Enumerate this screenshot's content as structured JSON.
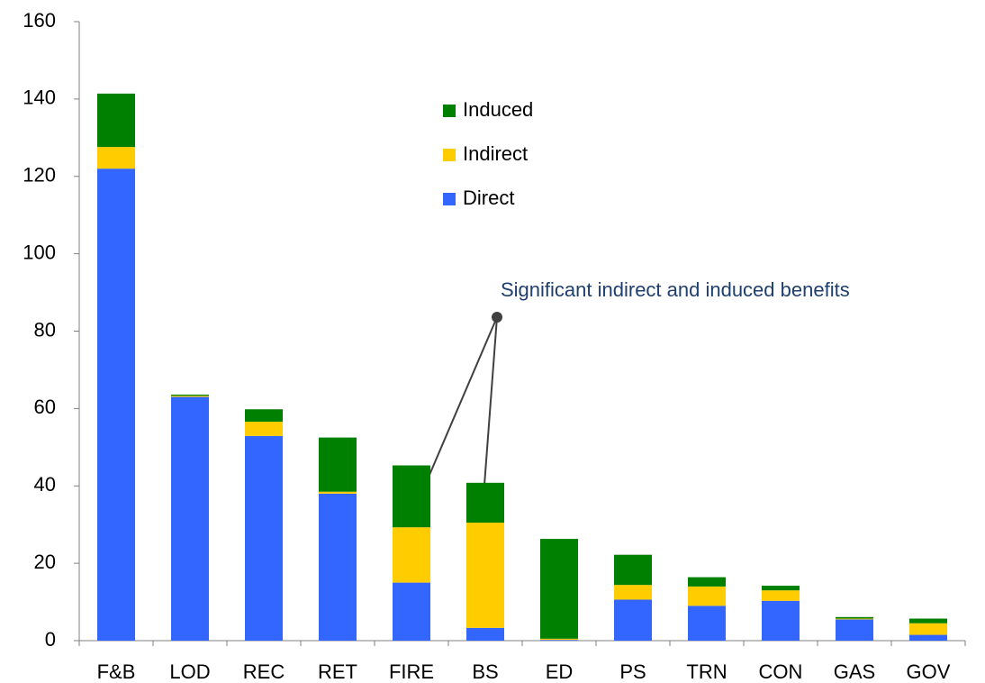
{
  "chart_data": {
    "type": "stacked_bar",
    "categories": [
      "F&B",
      "LOD",
      "REC",
      "RET",
      "FIRE",
      "BS",
      "ED",
      "PS",
      "TRN",
      "CON",
      "GAS",
      "GOV"
    ],
    "series": [
      {
        "name": "Direct",
        "color": "#3366ff",
        "values": [
          122,
          63,
          52.9,
          38,
          15,
          3.3,
          0.2,
          10.6,
          9,
          10.3,
          5.5,
          1.5
        ]
      },
      {
        "name": "Indirect",
        "color": "#ffcc00",
        "values": [
          5.6,
          0.3,
          3.7,
          0.5,
          14.3,
          27.2,
          0.3,
          3.8,
          5,
          2.7,
          0.2,
          3
        ]
      },
      {
        "name": "Induced",
        "color": "#008000",
        "values": [
          13.8,
          0.3,
          3.2,
          14,
          16,
          10.3,
          25.8,
          7.8,
          2.4,
          1.2,
          0.4,
          1.2
        ]
      }
    ],
    "ylim": [
      0,
      160
    ],
    "yticks": [
      0,
      20,
      40,
      60,
      80,
      100,
      120,
      140,
      160
    ],
    "annotation": "Significant indirect and induced benefits"
  }
}
